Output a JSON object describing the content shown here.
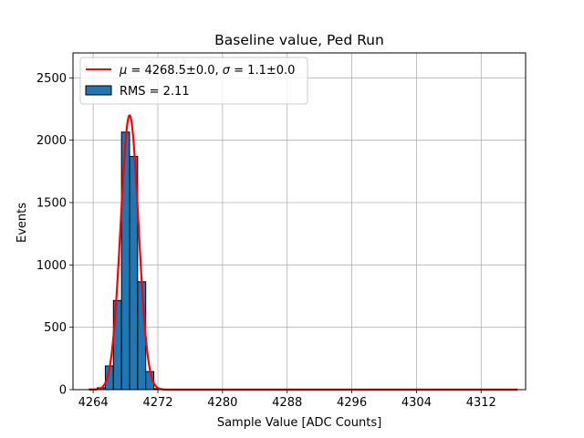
{
  "chart_data": {
    "type": "bar",
    "title": "Baseline value, Ped Run",
    "xlabel": "Sample Value [ADC Counts]",
    "ylabel": "Events",
    "xlim": [
      4261.5,
      4317.5
    ],
    "ylim": [
      0,
      2700
    ],
    "grid": true,
    "x_ticks": [
      4264,
      4272,
      4280,
      4288,
      4296,
      4304,
      4312
    ],
    "y_ticks": [
      0,
      500,
      1000,
      1500,
      2000,
      2500
    ],
    "legend_position": "top-left",
    "histogram": {
      "name": "RMS = 2.11",
      "color": "#1f77b4",
      "edgecolor": "#000000",
      "bins": [
        {
          "x0": 4263.5,
          "x1": 4264.5,
          "value": 5
        },
        {
          "x0": 4264.5,
          "x1": 4265.5,
          "value": 15
        },
        {
          "x0": 4265.5,
          "x1": 4266.5,
          "value": 190
        },
        {
          "x0": 4266.5,
          "x1": 4267.5,
          "value": 715
        },
        {
          "x0": 4267.5,
          "x1": 4268.5,
          "value": 2065
        },
        {
          "x0": 4268.5,
          "x1": 4269.5,
          "value": 1870
        },
        {
          "x0": 4269.5,
          "x1": 4270.5,
          "value": 865
        },
        {
          "x0": 4270.5,
          "x1": 4271.5,
          "value": 145
        },
        {
          "x0": 4271.5,
          "x1": 4272.5,
          "value": 8
        }
      ]
    },
    "fit": {
      "name": "$\\mu = 4268.5 \\pm 0.0$, $\\sigma = 1.1 \\pm 0.0$",
      "color": "#ff0000",
      "function": "gaussian",
      "amplitude": 2200,
      "mu": 4268.5,
      "sigma": 1.1,
      "x_range": [
        4263.5,
        4316.5
      ]
    },
    "legend": {
      "fit_label_parts": [
        {
          "t": "μ",
          "i": true
        },
        {
          "t": " = 4268.5±0.0, ",
          "i": false
        },
        {
          "t": "σ",
          "i": true
        },
        {
          "t": " = 1.1±0.0",
          "i": false
        }
      ],
      "hist_label": "RMS = 2.11"
    }
  }
}
